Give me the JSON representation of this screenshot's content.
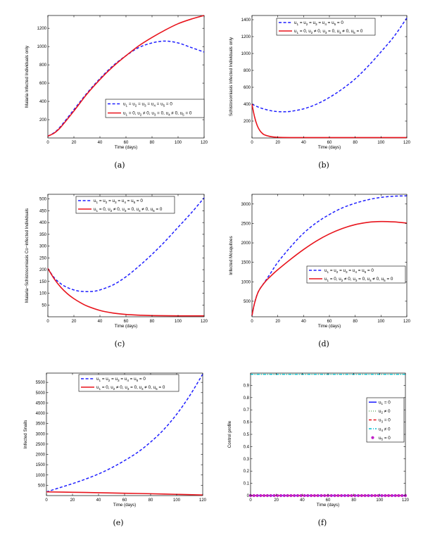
{
  "chart_data": [
    {
      "id": "a",
      "type": "line",
      "caption": "(a)",
      "xlabel": "Time (days)",
      "ylabel": "Malaria Infected Individuals only",
      "xlim": [
        0,
        120
      ],
      "ylim": [
        0,
        1340
      ],
      "xticks": [
        0,
        20,
        40,
        60,
        80,
        100,
        120
      ],
      "yticks": [
        200,
        400,
        600,
        800,
        1000,
        1200
      ],
      "legend_position": "center-right",
      "series": [
        {
          "name": "u1 = u2 = u3 = u4 = u5 = 0",
          "style": "dashed",
          "color": "#1f1fff",
          "x": [
            0,
            5,
            10,
            20,
            30,
            40,
            50,
            60,
            70,
            80,
            90,
            100,
            110,
            120
          ],
          "y": [
            20,
            60,
            130,
            310,
            490,
            650,
            790,
            900,
            990,
            1040,
            1060,
            1040,
            990,
            940
          ]
        },
        {
          "name": "u1 = 0, u2 ≠ 0, u3 = 0, u4 ≠ 0, u5 = 0",
          "style": "solid",
          "color": "#e8141c",
          "x": [
            0,
            5,
            10,
            20,
            30,
            40,
            50,
            60,
            70,
            80,
            90,
            100,
            110,
            120
          ],
          "y": [
            20,
            55,
            120,
            295,
            480,
            640,
            780,
            900,
            1010,
            1100,
            1180,
            1250,
            1300,
            1340
          ]
        }
      ],
      "legend_labels": [
        {
          "parts": [
            [
              "u",
              "1"
            ],
            [
              "u",
              "2"
            ],
            [
              "u",
              "3"
            ],
            [
              "u",
              "4"
            ],
            [
              "u",
              "5"
            ]
          ],
          "seps": [
            " = ",
            " = ",
            " = ",
            " = ",
            " = 0"
          ]
        },
        {
          "parts": [
            [
              "u",
              "1"
            ],
            [
              "u",
              "2"
            ],
            [
              "u",
              "3"
            ],
            [
              "u",
              "4"
            ],
            [
              "u",
              "5"
            ]
          ],
          "seps": [
            " = 0, ",
            " ≠ 0, ",
            " = 0, ",
            " ≠ 0, ",
            " = 0"
          ]
        }
      ]
    },
    {
      "id": "b",
      "type": "line",
      "caption": "(b)",
      "xlabel": "Time (days)",
      "ylabel": "Schistosomiasis Infected Individuals only",
      "xlim": [
        0,
        120
      ],
      "ylim": [
        0,
        1450
      ],
      "xticks": [
        0,
        20,
        40,
        60,
        80,
        100,
        120
      ],
      "yticks": [
        200,
        400,
        600,
        800,
        1000,
        1200,
        1400
      ],
      "legend_position": "top",
      "series": [
        {
          "name": "u1 = u2 = u3 = u4 = u5 = 0",
          "style": "dashed",
          "color": "#1f1fff",
          "x": [
            0,
            5,
            10,
            15,
            20,
            25,
            30,
            40,
            50,
            60,
            70,
            80,
            90,
            100,
            110,
            120
          ],
          "y": [
            400,
            365,
            340,
            322,
            312,
            310,
            315,
            345,
            400,
            480,
            580,
            700,
            850,
            1020,
            1200,
            1420
          ]
        },
        {
          "name": "u1 = 0, u2 ≠ 0, u3 = 0, u4 ≠ 0, u5 = 0",
          "style": "solid",
          "color": "#e8141c",
          "x": [
            0,
            2,
            4,
            6,
            8,
            10,
            15,
            20,
            30,
            40,
            60,
            80,
            100,
            120
          ],
          "y": [
            400,
            250,
            150,
            90,
            55,
            35,
            15,
            8,
            5,
            5,
            5,
            5,
            5,
            5
          ]
        }
      ],
      "legend_labels": [
        {
          "parts": [
            [
              "u",
              "1"
            ],
            [
              "u",
              "2"
            ],
            [
              "u",
              "3"
            ],
            [
              "u",
              "4"
            ],
            [
              "u",
              "5"
            ]
          ],
          "seps": [
            " = ",
            " = ",
            " = ",
            " = ",
            " = 0"
          ]
        },
        {
          "parts": [
            [
              "u",
              "1"
            ],
            [
              "u",
              "2"
            ],
            [
              "u",
              "3"
            ],
            [
              "u",
              "4"
            ],
            [
              "u",
              "5"
            ]
          ],
          "seps": [
            " = 0, ",
            " ≠ 0, ",
            " = 0, ",
            " ≠ 0, ",
            " = 0"
          ]
        }
      ]
    },
    {
      "id": "c",
      "type": "line",
      "caption": "(c)",
      "xlabel": "Time (days)",
      "ylabel": "Malaria−Schistosomiasis Co−infected Individuals",
      "xlim": [
        0,
        120
      ],
      "ylim": [
        0,
        520
      ],
      "xticks": [
        0,
        20,
        40,
        60,
        80,
        100,
        120
      ],
      "yticks": [
        50,
        100,
        150,
        200,
        250,
        300,
        350,
        400,
        450,
        500
      ],
      "legend_position": "top",
      "series": [
        {
          "name": "u1 = u2 = u3 = u4 = u5 = 0",
          "style": "dashed",
          "color": "#1f1fff",
          "x": [
            0,
            5,
            10,
            15,
            20,
            25,
            30,
            35,
            40,
            50,
            60,
            70,
            80,
            90,
            100,
            110,
            120
          ],
          "y": [
            205,
            165,
            140,
            124,
            114,
            108,
            107,
            108,
            114,
            135,
            170,
            215,
            265,
            320,
            380,
            440,
            505
          ]
        },
        {
          "name": "u1 = 0, u2 ≠ 0, u3 = 0, u4 ≠ 0, u5 = 0",
          "style": "solid",
          "color": "#e8141c",
          "x": [
            0,
            5,
            10,
            15,
            20,
            25,
            30,
            40,
            50,
            60,
            70,
            80,
            100,
            120
          ],
          "y": [
            205,
            160,
            125,
            98,
            77,
            60,
            46,
            27,
            16,
            10,
            7,
            5,
            4,
            4
          ]
        }
      ],
      "legend_labels": [
        {
          "parts": [
            [
              "u",
              "1"
            ],
            [
              "u",
              "2"
            ],
            [
              "u",
              "3"
            ],
            [
              "u",
              "4"
            ],
            [
              "u",
              "5"
            ]
          ],
          "seps": [
            " = ",
            " = ",
            " = ",
            " = ",
            " = 0"
          ]
        },
        {
          "parts": [
            [
              "u",
              "1"
            ],
            [
              "u",
              "2"
            ],
            [
              "u",
              "3"
            ],
            [
              "u",
              "4"
            ],
            [
              "u",
              "5"
            ]
          ],
          "seps": [
            " = 0, ",
            " ≠ 0, ",
            " = 0, ",
            " ≠ 0, ",
            " = 0"
          ]
        }
      ]
    },
    {
      "id": "d",
      "type": "line",
      "caption": "(d)",
      "xlabel": "Time (days)",
      "ylabel": "Infected Mosquitoes",
      "xlim": [
        0,
        120
      ],
      "ylim": [
        100,
        3250
      ],
      "xticks": [
        0,
        20,
        40,
        60,
        80,
        100,
        120
      ],
      "yticks": [
        500,
        1000,
        1500,
        2000,
        2500,
        3000
      ],
      "legend_position": "center-right",
      "series": [
        {
          "name": "u1 = u2 = u3 = u4 = u5 = 0",
          "style": "dashed",
          "color": "#1f1fff",
          "x": [
            0,
            2,
            5,
            10,
            15,
            20,
            30,
            40,
            50,
            60,
            70,
            80,
            90,
            100,
            110,
            120
          ],
          "y": [
            130,
            450,
            750,
            1000,
            1250,
            1500,
            1900,
            2250,
            2520,
            2730,
            2900,
            3020,
            3110,
            3170,
            3200,
            3210
          ]
        },
        {
          "name": "u1 = 0, u2 ≠ 0, u3 = 0, u4 ≠ 0, u5 = 0",
          "style": "solid",
          "color": "#e8141c",
          "x": [
            0,
            2,
            5,
            10,
            15,
            20,
            30,
            40,
            50,
            60,
            70,
            80,
            90,
            100,
            110,
            120
          ],
          "y": [
            130,
            450,
            750,
            990,
            1160,
            1310,
            1580,
            1830,
            2050,
            2230,
            2370,
            2470,
            2530,
            2550,
            2540,
            2510
          ]
        }
      ],
      "legend_labels": [
        {
          "parts": [
            [
              "u",
              "1"
            ],
            [
              "u",
              "2"
            ],
            [
              "u",
              "3"
            ],
            [
              "u",
              "4"
            ],
            [
              "u",
              "5"
            ]
          ],
          "seps": [
            " = ",
            " = ",
            " = ",
            " = ",
            " = 0"
          ]
        },
        {
          "parts": [
            [
              "u",
              "1"
            ],
            [
              "u",
              "2"
            ],
            [
              "u",
              "3"
            ],
            [
              "u",
              "4"
            ],
            [
              "u",
              "5"
            ]
          ],
          "seps": [
            " = 0, ",
            " ≠ 0, ",
            " = 0, ",
            " ≠ 0, ",
            " = 0"
          ]
        }
      ]
    },
    {
      "id": "e",
      "type": "line",
      "caption": "(e)",
      "xlabel": "Time (days)",
      "ylabel": "Infected Snails",
      "xlim": [
        0,
        120
      ],
      "ylim": [
        0,
        5950
      ],
      "xticks": [
        0,
        20,
        40,
        60,
        80,
        100,
        120
      ],
      "yticks": [
        500,
        1000,
        1500,
        2000,
        2500,
        3000,
        3500,
        4000,
        4500,
        5000,
        5500
      ],
      "legend_position": "top",
      "series": [
        {
          "name": "u1 = u2 = u3 = u4 = u5 = 0",
          "style": "dashed",
          "color": "#1f1fff",
          "x": [
            0,
            10,
            20,
            30,
            40,
            50,
            60,
            70,
            80,
            90,
            100,
            110,
            120
          ],
          "y": [
            180,
            380,
            580,
            800,
            1050,
            1350,
            1700,
            2100,
            2600,
            3200,
            3950,
            4850,
            5900
          ]
        },
        {
          "name": "u1 = 0, u2 ≠ 0, u3 = 0, u4 ≠ 0, u5 = 0",
          "style": "solid",
          "color": "#e8141c",
          "x": [
            0,
            20,
            40,
            60,
            80,
            100,
            120
          ],
          "y": [
            180,
            160,
            140,
            115,
            90,
            60,
            30
          ]
        }
      ],
      "legend_labels": [
        {
          "parts": [
            [
              "u",
              "1"
            ],
            [
              "u",
              "2"
            ],
            [
              "u",
              "3"
            ],
            [
              "u",
              "4"
            ],
            [
              "u",
              "5"
            ]
          ],
          "seps": [
            " = ",
            " = ",
            " = ",
            " = ",
            " = 0"
          ]
        },
        {
          "parts": [
            [
              "u",
              "1"
            ],
            [
              "u",
              "2"
            ],
            [
              "u",
              "3"
            ],
            [
              "u",
              "4"
            ],
            [
              "u",
              "5"
            ]
          ],
          "seps": [
            " = 0, ",
            " ≠ 0, ",
            " = 0, ",
            " ≠ 0, ",
            " = 0"
          ]
        }
      ]
    },
    {
      "id": "f",
      "type": "line",
      "caption": "(f)",
      "xlabel": "Time (days)",
      "ylabel": "Control profile",
      "xlim": [
        0,
        120
      ],
      "ylim": [
        0,
        1
      ],
      "xticks": [
        0,
        20,
        40,
        60,
        80,
        100,
        120
      ],
      "yticks": [
        0,
        0.1,
        0.2,
        0.3,
        0.4,
        0.5,
        0.6,
        0.7,
        0.8,
        0.9
      ],
      "legend_position": "right",
      "series": [
        {
          "name": "u1 = 0",
          "style": "solid",
          "color": "#1f1fff",
          "x": [
            0,
            120
          ],
          "y": [
            0,
            0
          ]
        },
        {
          "name": "u2 ≠ 0",
          "style": "dotted",
          "color": "#2a8a2a",
          "x": [
            0,
            120
          ],
          "y": [
            0.99,
            0.99
          ]
        },
        {
          "name": "u3 = 0",
          "style": "dashed",
          "color": "#e8141c",
          "x": [
            0,
            120
          ],
          "y": [
            0,
            0
          ]
        },
        {
          "name": "u4 ≠ 0",
          "style": "dashdot",
          "color": "#17c4d4",
          "x": [
            0,
            120
          ],
          "y": [
            0.99,
            0.99
          ]
        },
        {
          "name": "u5 = 0",
          "style": "markers",
          "color": "#c020c8",
          "x": [
            0,
            120
          ],
          "y": [
            0,
            0
          ]
        }
      ],
      "legend_labels": [
        {
          "parts": [
            [
              "u",
              "1"
            ]
          ],
          "seps": [
            " = 0"
          ]
        },
        {
          "parts": [
            [
              "u",
              "2"
            ]
          ],
          "seps": [
            " ≠ 0"
          ]
        },
        {
          "parts": [
            [
              "u",
              "3"
            ]
          ],
          "seps": [
            " = 0"
          ]
        },
        {
          "parts": [
            [
              "u",
              "4"
            ]
          ],
          "seps": [
            " ≠ 0"
          ]
        },
        {
          "parts": [
            [
              "u",
              "5"
            ]
          ],
          "seps": [
            " = 0"
          ]
        }
      ]
    }
  ]
}
